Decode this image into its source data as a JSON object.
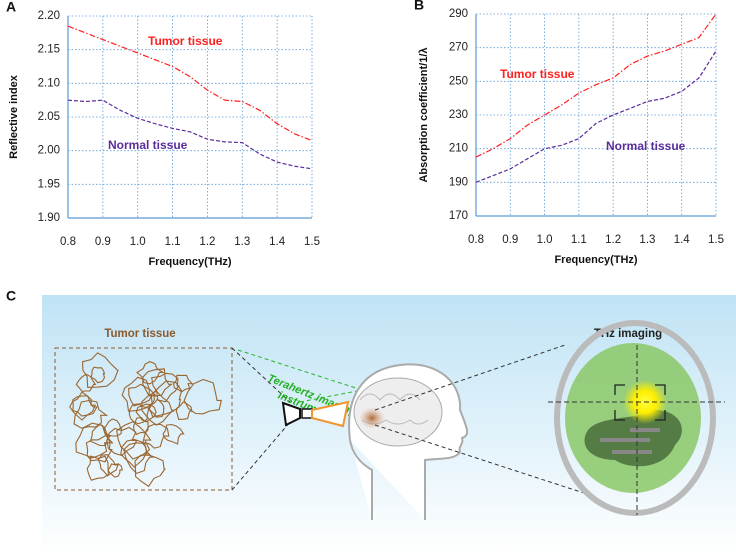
{
  "chart_data": [
    {
      "type": "line",
      "panel": "A",
      "y_label": "Reflective index",
      "x_label": "Frequency(THz)",
      "x": [
        0.8,
        0.85,
        0.9,
        0.95,
        1.0,
        1.05,
        1.1,
        1.15,
        1.2,
        1.25,
        1.3,
        1.35,
        1.4,
        1.45,
        1.5
      ],
      "series": [
        {
          "name": "Tumor tissue",
          "color": "#ff2020",
          "dash": "dashdot",
          "values": [
            2.185,
            2.175,
            2.165,
            2.155,
            2.145,
            2.135,
            2.125,
            2.11,
            2.09,
            2.075,
            2.073,
            2.06,
            2.04,
            2.025,
            2.015
          ]
        },
        {
          "name": "Normal tissue",
          "color": "#5a2d9c",
          "dash": "dash",
          "values": [
            2.075,
            2.073,
            2.075,
            2.06,
            2.048,
            2.04,
            2.033,
            2.028,
            2.017,
            2.013,
            2.012,
            1.995,
            1.983,
            1.977,
            1.973
          ]
        }
      ],
      "xlim": [
        0.8,
        1.5
      ],
      "xticks": [
        0.8,
        0.9,
        {
          "value": 1.0,
          "label": "1.0"
        },
        1.1,
        1.2,
        1.3,
        1.4,
        1.5
      ],
      "ylim": [
        1.9,
        2.2
      ],
      "yticks": [
        {
          "value": 1.9,
          "label": "1.90"
        },
        1.95,
        {
          "value": 2.0,
          "label": "2.00"
        },
        2.05,
        {
          "value": 2.1,
          "label": "2.10"
        },
        2.15,
        {
          "value": 2.2,
          "label": "2.20"
        }
      ],
      "grid": true
    },
    {
      "type": "line",
      "panel": "B",
      "y_label": "Absorption coefficient/1/λ",
      "x_label": "Frequency(THz)",
      "x": [
        0.8,
        0.85,
        0.9,
        0.95,
        1.0,
        1.05,
        1.1,
        1.15,
        1.2,
        1.25,
        1.3,
        1.35,
        1.4,
        1.45,
        1.5
      ],
      "series": [
        {
          "name": "Tumor tissue",
          "color": "#ff2020",
          "dash": "dashdot",
          "values": [
            205,
            210,
            216,
            224,
            230,
            236,
            243,
            248,
            252,
            260,
            265,
            268,
            272,
            276,
            290
          ]
        },
        {
          "name": "Normal tissue",
          "color": "#5a2d9c",
          "dash": "dash",
          "values": [
            190,
            194,
            198,
            204,
            210,
            212,
            216,
            225,
            230,
            234,
            238,
            240,
            244,
            252,
            268
          ]
        }
      ],
      "xlim": [
        0.8,
        1.5
      ],
      "xticks": [
        0.8,
        0.9,
        {
          "value": 1.0,
          "label": "1.0"
        },
        1.1,
        1.2,
        1.3,
        1.4,
        1.5
      ],
      "ylim": [
        170,
        290
      ],
      "yticks": [
        170,
        190,
        210,
        230,
        250,
        270,
        290
      ],
      "grid": true
    }
  ],
  "illustration": {
    "panel": "C",
    "tumor_label": "Tumor tissue",
    "instrument_label": [
      "Terahertz imaging",
      "instrument"
    ],
    "imaging_label": "THz imaging"
  }
}
